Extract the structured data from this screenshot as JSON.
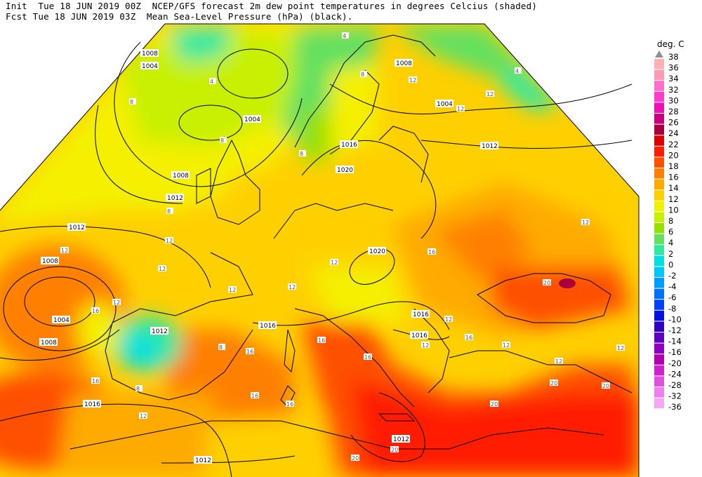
{
  "header": {
    "line1": "Init  Tue 18 JUN 2019 00Z  NCEP/GFS forecast 2m dew point temperatures in degrees Celcius (shaded)",
    "line2": "Fcst Tue 18 JUN 2019 03Z  Mean Sea-Level Pressure (hPa) (black)."
  },
  "legend": {
    "title": "deg. C",
    "labels": [
      "38",
      "36",
      "34",
      "32",
      "30",
      "28",
      "26",
      "24",
      "22",
      "20",
      "18",
      "16",
      "14",
      "12",
      "10",
      "8",
      "6",
      "4",
      "2",
      "0",
      "-2",
      "-4",
      "-6",
      "-8",
      "-10",
      "-12",
      "-14",
      "-16",
      "-20",
      "-24",
      "-28",
      "-32",
      "-36"
    ],
    "colors": [
      "#ffb0b0",
      "#ff9ab4",
      "#ff6ec8",
      "#ff3ccc",
      "#ee10b4",
      "#c40080",
      "#a8003c",
      "#dc0000",
      "#ff1c00",
      "#ff5000",
      "#ff8000",
      "#ffaa00",
      "#ffd000",
      "#f4f000",
      "#c8f000",
      "#96e000",
      "#64e060",
      "#30e8a0",
      "#00e0e0",
      "#00c8ff",
      "#009cff",
      "#0070ff",
      "#0040ff",
      "#0010e0",
      "#3000c0",
      "#6000c0",
      "#9000c0",
      "#b000b0",
      "#d020d0",
      "#e050e0",
      "#f080f0",
      "#f4a8f4"
    ]
  },
  "map": {
    "isobar_labels": [
      "1008",
      "1004",
      "1004",
      "1008",
      "1012",
      "1004",
      "1016",
      "1020",
      "1008",
      "1012",
      "1012",
      "1008",
      "1004",
      "1016",
      "1012",
      "1016",
      "1020",
      "1016",
      "1016",
      "1012",
      "1012",
      "1008"
    ],
    "dewpoint_labels": [
      "4",
      "4",
      "8",
      "8",
      "8",
      "12",
      "12",
      "12",
      "12",
      "8",
      "4",
      "8",
      "12",
      "12",
      "16",
      "12",
      "16",
      "20",
      "12",
      "16",
      "12",
      "12",
      "16",
      "16",
      "16",
      "12",
      "20",
      "20",
      "20",
      "12",
      "12",
      "16",
      "8",
      "12",
      "12",
      "16",
      "20",
      "20",
      "8",
      "12",
      "16",
      "12"
    ]
  }
}
